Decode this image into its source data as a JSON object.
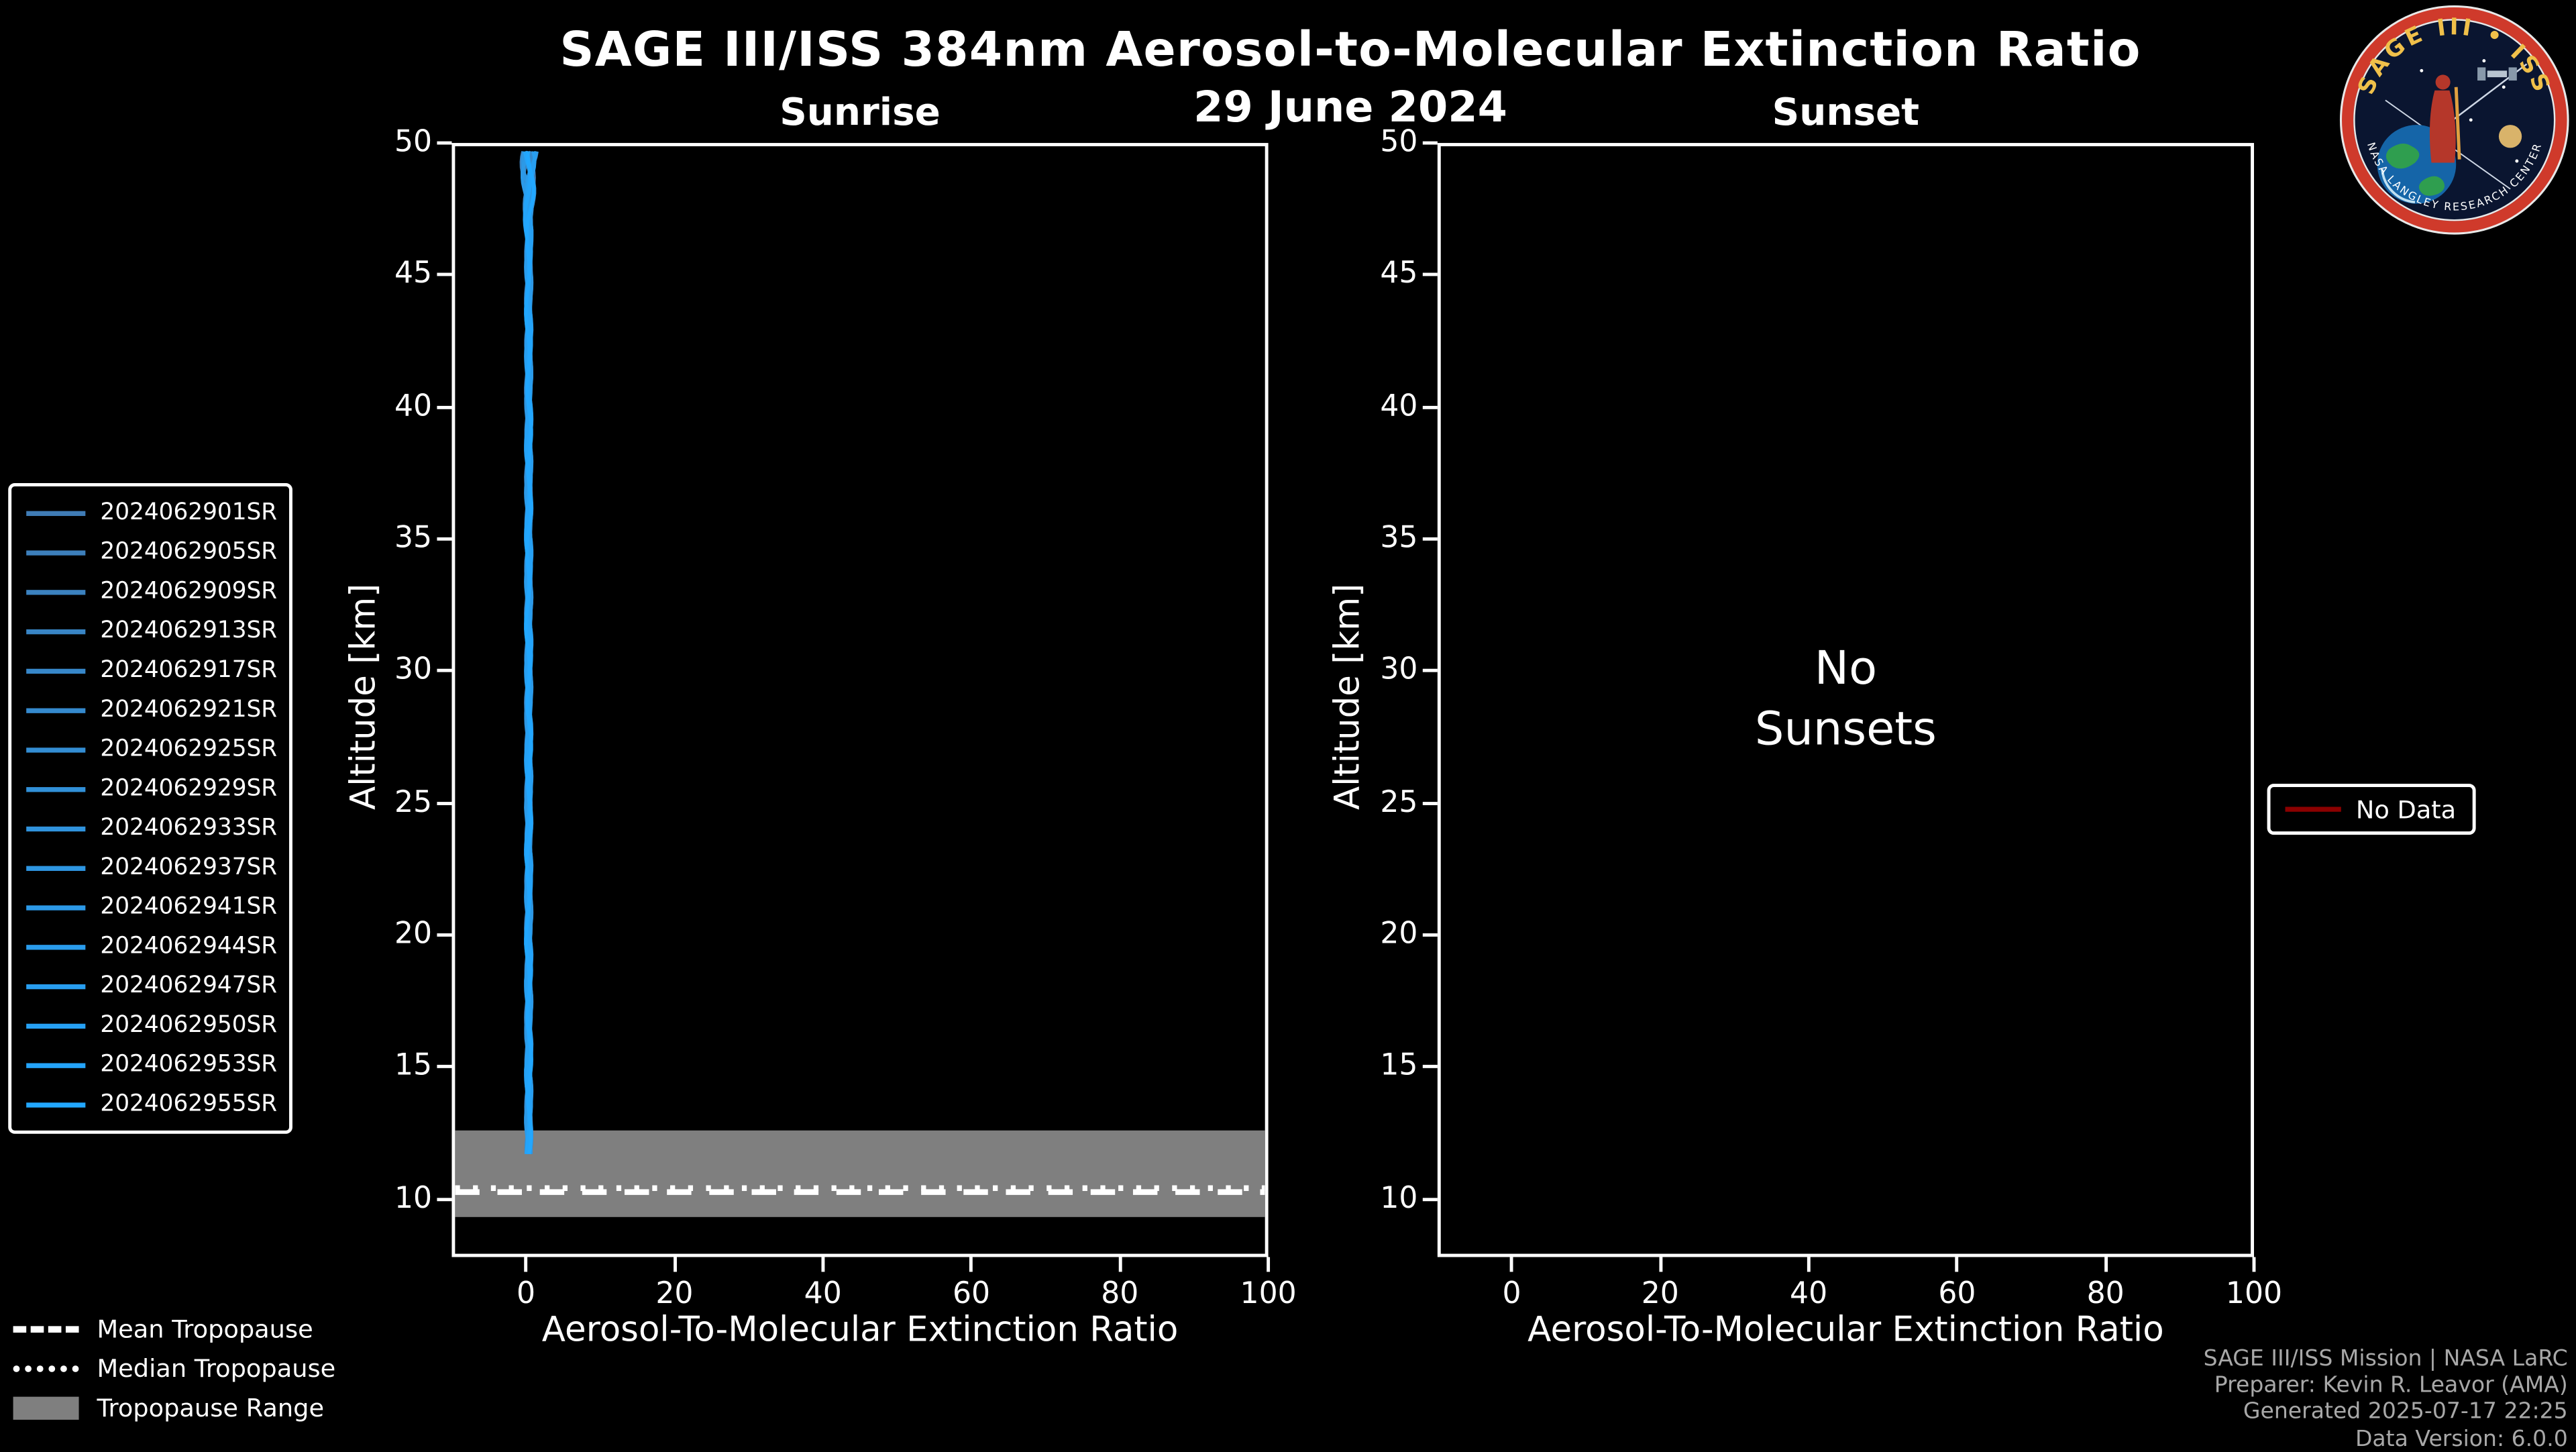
{
  "figure": {
    "title": "SAGE III/ISS 384nm Aerosol-to-Molecular Extinction Ratio",
    "date": "29 June 2024"
  },
  "panels": {
    "sunrise": {
      "title": "Sunrise",
      "xlabel": "Aerosol-To-Molecular Extinction Ratio",
      "ylabel": "Altitude [km]"
    },
    "sunset": {
      "title": "Sunset",
      "xlabel": "Aerosol-To-Molecular Extinction Ratio",
      "ylabel": "Altitude [km]",
      "message_line1": "No",
      "message_line2": "Sunsets"
    }
  },
  "event_legend": {
    "items": [
      "2024062901SR",
      "2024062905SR",
      "2024062909SR",
      "2024062913SR",
      "2024062917SR",
      "2024062921SR",
      "2024062925SR",
      "2024062929SR",
      "2024062933SR",
      "2024062937SR",
      "2024062941SR",
      "2024062944SR",
      "2024062947SR",
      "2024062950SR",
      "2024062953SR",
      "2024062955SR"
    ],
    "color_start": "#3f7cb6",
    "color_end": "#22a7ff"
  },
  "no_data_legend": {
    "label": "No Data",
    "color": "#8b0000"
  },
  "tropopause_legend": {
    "mean": {
      "label": "Mean Tropopause",
      "style": "dashed"
    },
    "median": {
      "label": "Median Tropopause",
      "style": "dotted"
    },
    "range": {
      "label": "Tropopause Range",
      "style": "band",
      "color": "#7f7f7f"
    }
  },
  "credits": [
    "SAGE III/ISS Mission | NASA LaRC",
    "Preparer: Kevin R. Leavor (AMA)",
    "Generated 2025-07-17 22:25",
    "Data Version: 6.0.0"
  ],
  "logo": {
    "title": "SAGE III • ISS",
    "arc_text": "NASA LANGLEY RESEARCH CENTER"
  },
  "chart_data": [
    {
      "type": "line",
      "panel": "sunrise",
      "title": "Sunrise",
      "xlabel": "Aerosol-To-Molecular Extinction Ratio",
      "ylabel": "Altitude [km]",
      "xlim": [
        -10,
        100
      ],
      "ylim": [
        7.8,
        50
      ],
      "x_ticks": [
        0,
        20,
        40,
        60,
        80,
        100
      ],
      "y_ticks": [
        10,
        15,
        20,
        25,
        30,
        35,
        40,
        45,
        50
      ],
      "grid": false,
      "legend_position": "outside-left",
      "series_note": "All sunrise profiles lie at extinction ratio ≈ 0 over 11.5–49.8 km",
      "series": [
        {
          "name": "2024062901SR",
          "ratio_approx": 0,
          "altitude_range_km": [
            11.5,
            49.8
          ]
        },
        {
          "name": "2024062905SR",
          "ratio_approx": 0,
          "altitude_range_km": [
            11.5,
            49.8
          ]
        },
        {
          "name": "2024062909SR",
          "ratio_approx": 0,
          "altitude_range_km": [
            11.5,
            49.8
          ]
        },
        {
          "name": "2024062913SR",
          "ratio_approx": 0,
          "altitude_range_km": [
            11.5,
            49.8
          ]
        },
        {
          "name": "2024062917SR",
          "ratio_approx": 0,
          "altitude_range_km": [
            11.5,
            49.8
          ]
        },
        {
          "name": "2024062921SR",
          "ratio_approx": 0,
          "altitude_range_km": [
            11.5,
            49.8
          ]
        },
        {
          "name": "2024062925SR",
          "ratio_approx": 0,
          "altitude_range_km": [
            11.5,
            49.8
          ]
        },
        {
          "name": "2024062929SR",
          "ratio_approx": 0,
          "altitude_range_km": [
            11.5,
            49.8
          ]
        },
        {
          "name": "2024062933SR",
          "ratio_approx": 0,
          "altitude_range_km": [
            11.5,
            49.8
          ]
        },
        {
          "name": "2024062937SR",
          "ratio_approx": 0,
          "altitude_range_km": [
            11.5,
            49.8
          ]
        },
        {
          "name": "2024062941SR",
          "ratio_approx": 0,
          "altitude_range_km": [
            11.5,
            49.8
          ]
        },
        {
          "name": "2024062944SR",
          "ratio_approx": 0,
          "altitude_range_km": [
            11.5,
            49.8
          ]
        },
        {
          "name": "2024062947SR",
          "ratio_approx": 0,
          "altitude_range_km": [
            11.5,
            49.8
          ]
        },
        {
          "name": "2024062950SR",
          "ratio_approx": 0,
          "altitude_range_km": [
            11.5,
            49.8
          ]
        },
        {
          "name": "2024062953SR",
          "ratio_approx": 0,
          "altitude_range_km": [
            11.5,
            49.8
          ]
        },
        {
          "name": "2024062955SR",
          "ratio_approx": 0,
          "altitude_range_km": [
            11.5,
            49.8
          ]
        }
      ],
      "annotations": {
        "tropopause_range_km": [
          9.2,
          12.5
        ],
        "mean_tropopause_km": 10.15,
        "median_tropopause_km": 10.3
      }
    },
    {
      "type": "line",
      "panel": "sunset",
      "title": "Sunset",
      "xlabel": "Aerosol-To-Molecular Extinction Ratio",
      "ylabel": "Altitude [km]",
      "xlim": [
        -10,
        100
      ],
      "ylim": [
        7.8,
        50
      ],
      "x_ticks": [
        0,
        20,
        40,
        60,
        80,
        100
      ],
      "y_ticks": [
        10,
        15,
        20,
        25,
        30,
        35,
        40,
        45,
        50
      ],
      "grid": false,
      "series": [],
      "annotation": "No Sunsets"
    }
  ]
}
